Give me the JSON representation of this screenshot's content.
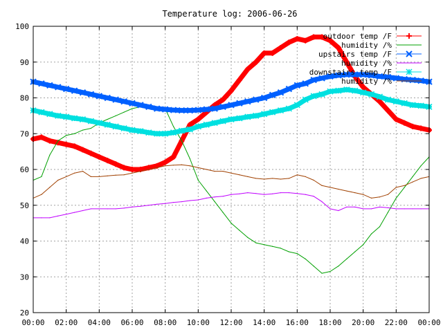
{
  "chart_data": {
    "type": "line",
    "title": "Temperature log: 2006-06-26",
    "xlabel": "",
    "ylabel": "",
    "ylim": [
      20,
      100
    ],
    "xlim": [
      0,
      24
    ],
    "x_unit": "hours",
    "x_ticks": [
      "00:00",
      "02:00",
      "04:00",
      "06:00",
      "08:00",
      "10:00",
      "12:00",
      "14:00",
      "16:00",
      "18:00",
      "20:00",
      "22:00",
      "00:00"
    ],
    "y_ticks": [
      "20",
      "30",
      "40",
      "50",
      "60",
      "70",
      "80",
      "90",
      "100"
    ],
    "grid": true,
    "legend_position": "top-right",
    "series": [
      {
        "name": "outdoor temp /F",
        "color": "#ff0000",
        "marker": "plus",
        "x": [
          0,
          0.5,
          1,
          1.5,
          2,
          2.5,
          3,
          3.5,
          4,
          4.5,
          5,
          5.5,
          6,
          6.5,
          7,
          7.5,
          8,
          8.5,
          9,
          9.5,
          10,
          10.5,
          11,
          11.5,
          12,
          12.5,
          13,
          13.5,
          14,
          14.5,
          15,
          15.5,
          16,
          16.5,
          17,
          17.5,
          18,
          18.5,
          19,
          19.5,
          20,
          20.5,
          21,
          21.5,
          22,
          22.5,
          23,
          23.5,
          24
        ],
        "values": [
          68.5,
          69,
          68,
          67.5,
          67,
          66.5,
          65.5,
          64.5,
          63.5,
          62.5,
          61.5,
          60.5,
          60,
          60,
          60.5,
          61,
          62,
          63.5,
          68,
          72.5,
          74,
          76,
          78,
          79.5,
          82,
          85,
          88,
          90,
          92.5,
          92.5,
          94,
          95.5,
          96.5,
          96,
          97,
          97,
          96,
          94,
          90,
          86,
          83,
          81,
          79,
          76.5,
          74,
          73,
          72,
          71.5,
          71
        ]
      },
      {
        "name": "humidity /%",
        "color": "#00a000",
        "marker": "none",
        "x": [
          0,
          0.5,
          1,
          1.5,
          2,
          2.5,
          3,
          3.5,
          4,
          4.5,
          5,
          5.5,
          6,
          6.5,
          7,
          7.5,
          8,
          8.5,
          9,
          9.5,
          10,
          10.5,
          11,
          11.5,
          12,
          12.5,
          13,
          13.5,
          14,
          14.5,
          15,
          15.5,
          16,
          16.5,
          17,
          17.5,
          18,
          18.5,
          19,
          19.5,
          20,
          20.5,
          21,
          21.5,
          22,
          22.5,
          23,
          23.5,
          24
        ],
        "values": [
          57,
          58,
          64,
          68,
          69.5,
          70,
          71,
          71.5,
          73,
          74,
          75,
          76,
          77,
          77.5,
          78,
          77,
          77,
          72,
          68,
          63,
          57,
          54,
          51,
          48,
          45,
          43,
          41,
          39.5,
          39,
          38.5,
          38,
          37,
          36.5,
          35,
          33,
          31,
          31.5,
          33,
          35,
          37,
          39,
          42,
          44,
          48,
          52,
          55,
          58,
          61,
          63.5
        ]
      },
      {
        "name": "upstairs temp /F",
        "color": "#0060ff",
        "marker": "x",
        "x": [
          0,
          0.5,
          1,
          1.5,
          2,
          2.5,
          3,
          3.5,
          4,
          4.5,
          5,
          5.5,
          6,
          6.5,
          7,
          7.5,
          8,
          8.5,
          9,
          9.5,
          10,
          10.5,
          11,
          11.5,
          12,
          12.5,
          13,
          13.5,
          14,
          14.5,
          15,
          15.5,
          16,
          16.5,
          17,
          17.5,
          18,
          18.5,
          19,
          19.5,
          20,
          20.5,
          21,
          21.5,
          22,
          22.5,
          23,
          23.5,
          24
        ],
        "values": [
          84.5,
          84,
          83.5,
          83,
          82.5,
          82,
          81.5,
          81,
          80.5,
          80,
          79.5,
          79,
          78.5,
          78,
          77.5,
          77,
          76.8,
          76.6,
          76.5,
          76.5,
          76.6,
          76.8,
          77,
          77.5,
          78,
          78.5,
          79,
          79.5,
          80,
          80.8,
          81.5,
          82.5,
          83.5,
          84,
          85,
          85.5,
          86,
          86.3,
          86.5,
          86.5,
          86.5,
          86.3,
          86,
          85.8,
          85.5,
          85.2,
          85,
          84.8,
          84.5
        ]
      },
      {
        "name": "humidity /%",
        "color": "#c000ff",
        "marker": "none",
        "x": [
          0,
          0.5,
          1,
          1.5,
          2,
          2.5,
          3,
          3.5,
          4,
          4.5,
          5,
          5.5,
          6,
          6.5,
          7,
          7.5,
          8,
          8.5,
          9,
          9.5,
          10,
          10.5,
          11,
          11.5,
          12,
          12.5,
          13,
          13.5,
          14,
          14.5,
          15,
          15.5,
          16,
          16.5,
          17,
          17.5,
          18,
          18.5,
          19,
          19.5,
          20,
          20.5,
          21,
          21.5,
          22,
          22.5,
          23,
          23.5,
          24
        ],
        "values": [
          46.5,
          46.5,
          46.5,
          47,
          47.5,
          48,
          48.5,
          49,
          49,
          49,
          49,
          49.2,
          49.5,
          49.7,
          50,
          50.3,
          50.5,
          50.8,
          51,
          51.3,
          51.5,
          52,
          52.3,
          52.5,
          53,
          53.2,
          53.5,
          53.3,
          53,
          53.2,
          53.5,
          53.5,
          53.3,
          53,
          52.5,
          51,
          49,
          48.5,
          49.5,
          49.5,
          49,
          49,
          49.5,
          49.3,
          49,
          49,
          49,
          49,
          49
        ]
      },
      {
        "name": "downstairs temp /F",
        "color": "#00e0e0",
        "marker": "star",
        "x": [
          0,
          0.5,
          1,
          1.5,
          2,
          2.5,
          3,
          3.5,
          4,
          4.5,
          5,
          5.5,
          6,
          6.5,
          7,
          7.5,
          8,
          8.5,
          9,
          9.5,
          10,
          10.5,
          11,
          11.5,
          12,
          12.5,
          13,
          13.5,
          14,
          14.5,
          15,
          15.5,
          16,
          16.5,
          17,
          17.5,
          18,
          18.5,
          19,
          19.5,
          20,
          20.5,
          21,
          21.5,
          22,
          22.5,
          23,
          23.5,
          24
        ],
        "values": [
          76.5,
          76,
          75.5,
          75,
          74.7,
          74.3,
          74,
          73.5,
          73,
          72.5,
          72,
          71.5,
          71,
          70.7,
          70.3,
          70,
          70,
          70.3,
          70.8,
          71.2,
          72,
          72.5,
          73,
          73.5,
          74,
          74.3,
          74.7,
          75,
          75.5,
          76,
          76.5,
          77,
          78,
          79.5,
          80.5,
          81,
          81.8,
          82,
          82.3,
          82,
          81.5,
          81,
          80.3,
          79.5,
          79,
          78.5,
          78,
          77.8,
          77.5
        ]
      },
      {
        "name": "humidity /%",
        "color": "#a04000",
        "marker": "none",
        "x": [
          0,
          0.5,
          1,
          1.5,
          2,
          2.5,
          3,
          3.5,
          4,
          4.5,
          5,
          5.5,
          6,
          6.5,
          7,
          7.5,
          8,
          8.5,
          9,
          9.5,
          10,
          10.5,
          11,
          11.5,
          12,
          12.5,
          13,
          13.5,
          14,
          14.5,
          15,
          15.5,
          16,
          16.5,
          17,
          17.5,
          18,
          18.5,
          19,
          19.5,
          20,
          20.5,
          21,
          21.5,
          22,
          22.5,
          23,
          23.5,
          24
        ],
        "values": [
          52,
          53,
          55,
          57,
          58,
          59,
          59.5,
          58,
          58,
          58.2,
          58.4,
          58.5,
          59,
          59.5,
          60,
          60.5,
          61,
          61.2,
          61.3,
          61,
          60.5,
          60,
          59.5,
          59.5,
          59,
          58.5,
          58,
          57.5,
          57.3,
          57.5,
          57.3,
          57.5,
          58.5,
          58,
          57,
          55.5,
          55,
          54.5,
          54,
          53.5,
          53,
          52,
          52.3,
          53,
          55,
          55.5,
          56.5,
          57.5,
          58
        ]
      }
    ]
  }
}
